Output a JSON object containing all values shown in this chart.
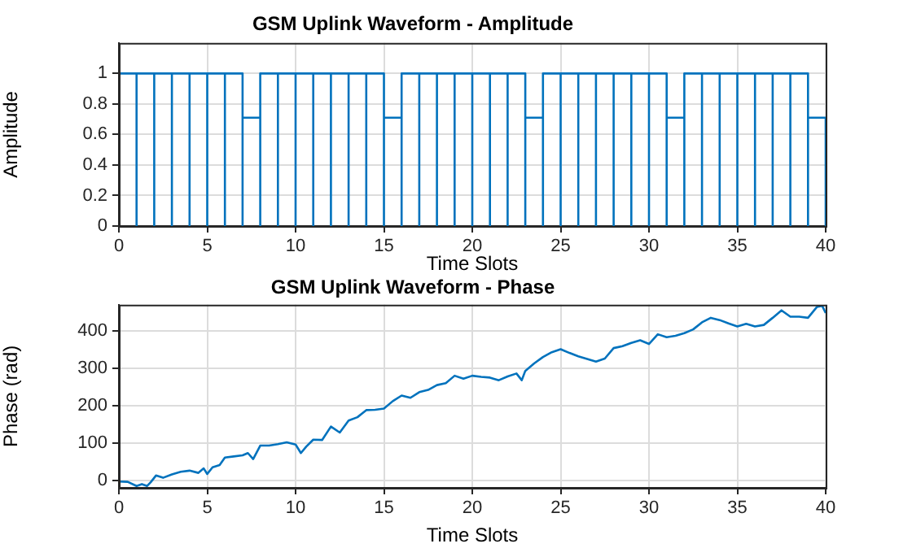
{
  "chart_data": [
    {
      "type": "line",
      "title": "GSM Uplink Waveform - Amplitude",
      "xlabel": "Time Slots",
      "ylabel": "Amplitude",
      "xlim": [
        0,
        40
      ],
      "xticks": [
        0,
        5,
        10,
        15,
        20,
        25,
        30,
        35,
        40
      ],
      "ylim": [
        0,
        1.2
      ],
      "yticks": [
        0,
        0.2,
        0.4,
        0.6,
        0.8,
        1
      ],
      "grid": true,
      "marker": "none",
      "series": [
        {
          "color": "#0072bd",
          "x": [
            0,
            1,
            1,
            1,
            2,
            2,
            2,
            3,
            3,
            3,
            4,
            4,
            4,
            5,
            5,
            5,
            6,
            6,
            6,
            7,
            7,
            7,
            8,
            8,
            8,
            9,
            9,
            9,
            10,
            10,
            10,
            11,
            11,
            11,
            12,
            12,
            12,
            13,
            13,
            13,
            14,
            14,
            14,
            15,
            15,
            15,
            16,
            16,
            16,
            17,
            17,
            17,
            18,
            18,
            18,
            19,
            19,
            19,
            20,
            20,
            20,
            21,
            21,
            21,
            22,
            22,
            22,
            23,
            23,
            23,
            24,
            24,
            24,
            25,
            25,
            25,
            26,
            26,
            26,
            27,
            27,
            27,
            28,
            28,
            28,
            29,
            29,
            29,
            30,
            30,
            30,
            31,
            31,
            31,
            32,
            32,
            32,
            33,
            33,
            33,
            34,
            34,
            34,
            35,
            35,
            35,
            36,
            36,
            36,
            37,
            37,
            37,
            38,
            38,
            38,
            39,
            39,
            39,
            40,
            40
          ],
          "values": [
            1,
            1,
            0,
            1,
            1,
            0,
            1,
            1,
            0,
            1,
            1,
            0,
            1,
            1,
            0,
            1,
            1,
            0,
            1,
            1,
            0,
            0.71,
            0.71,
            0,
            1,
            1,
            0,
            1,
            1,
            0,
            1,
            1,
            0,
            1,
            1,
            0,
            1,
            1,
            0,
            1,
            1,
            0,
            1,
            1,
            0,
            0.71,
            0.71,
            0,
            1,
            1,
            0,
            1,
            1,
            0,
            1,
            1,
            0,
            1,
            1,
            0,
            1,
            1,
            0,
            1,
            1,
            0,
            1,
            1,
            0,
            0.71,
            0.71,
            0,
            1,
            1,
            0,
            1,
            1,
            0,
            1,
            1,
            0,
            1,
            1,
            0,
            1,
            1,
            0,
            1,
            1,
            0,
            1,
            1,
            0,
            0.71,
            0.71,
            0,
            1,
            1,
            0,
            1,
            1,
            0,
            1,
            1,
            0,
            1,
            1,
            0,
            1,
            1,
            0,
            1,
            1,
            0,
            1,
            1,
            0,
            0.71,
            0.71,
            0
          ]
        }
      ]
    },
    {
      "type": "line",
      "title": "GSM Uplink Waveform - Phase",
      "xlabel": "Time Slots",
      "ylabel": "Phase (rad)",
      "xlim": [
        0,
        40
      ],
      "xticks": [
        0,
        5,
        10,
        15,
        20,
        25,
        30,
        35,
        40
      ],
      "ylim": [
        -20,
        470
      ],
      "yticks": [
        0,
        100,
        200,
        300,
        400
      ],
      "grid": true,
      "marker": "none",
      "series": [
        {
          "color": "#0072bd",
          "x": [
            0,
            0.5,
            1,
            1.3,
            1.6,
            1.8,
            2.1,
            2.5,
            3,
            3.5,
            4,
            4.5,
            4.8,
            5,
            5.3,
            5.7,
            6,
            6.5,
            7,
            7.3,
            7.6,
            8,
            8.5,
            9,
            9.5,
            10,
            10.3,
            10.6,
            11,
            11.5,
            12,
            12.5,
            13,
            13.5,
            14,
            14.5,
            15,
            15.5,
            16,
            16.5,
            17,
            17.5,
            18,
            18.5,
            19,
            19.5,
            20,
            20.5,
            21,
            21.5,
            22,
            22.5,
            22.8,
            23,
            23.5,
            24,
            24.5,
            25,
            25.5,
            26,
            26.5,
            27,
            27.5,
            28,
            28.5,
            29,
            29.5,
            30,
            30.5,
            31,
            31.5,
            32,
            32.5,
            33,
            33.5,
            34,
            34.5,
            35,
            35.5,
            36,
            36.5,
            37,
            37.5,
            38,
            38.5,
            39,
            39.5,
            39.8,
            40
          ],
          "values": [
            -3,
            -4,
            -15,
            -10,
            -15,
            -5,
            13,
            7,
            16,
            23,
            26,
            20,
            32,
            17,
            35,
            41,
            61,
            64,
            67,
            73,
            57,
            93,
            93,
            97,
            102,
            96,
            73,
            90,
            109,
            108,
            144,
            128,
            160,
            169,
            188,
            189,
            192,
            212,
            227,
            221,
            236,
            242,
            255,
            260,
            280,
            272,
            280,
            277,
            275,
            268,
            278,
            286,
            268,
            293,
            313,
            330,
            343,
            351,
            341,
            332,
            325,
            318,
            326,
            354,
            359,
            368,
            375,
            365,
            391,
            383,
            387,
            394,
            404,
            423,
            435,
            429,
            420,
            412,
            419,
            412,
            416,
            435,
            455,
            438,
            438,
            435,
            464,
            467,
            448
          ]
        }
      ]
    }
  ]
}
